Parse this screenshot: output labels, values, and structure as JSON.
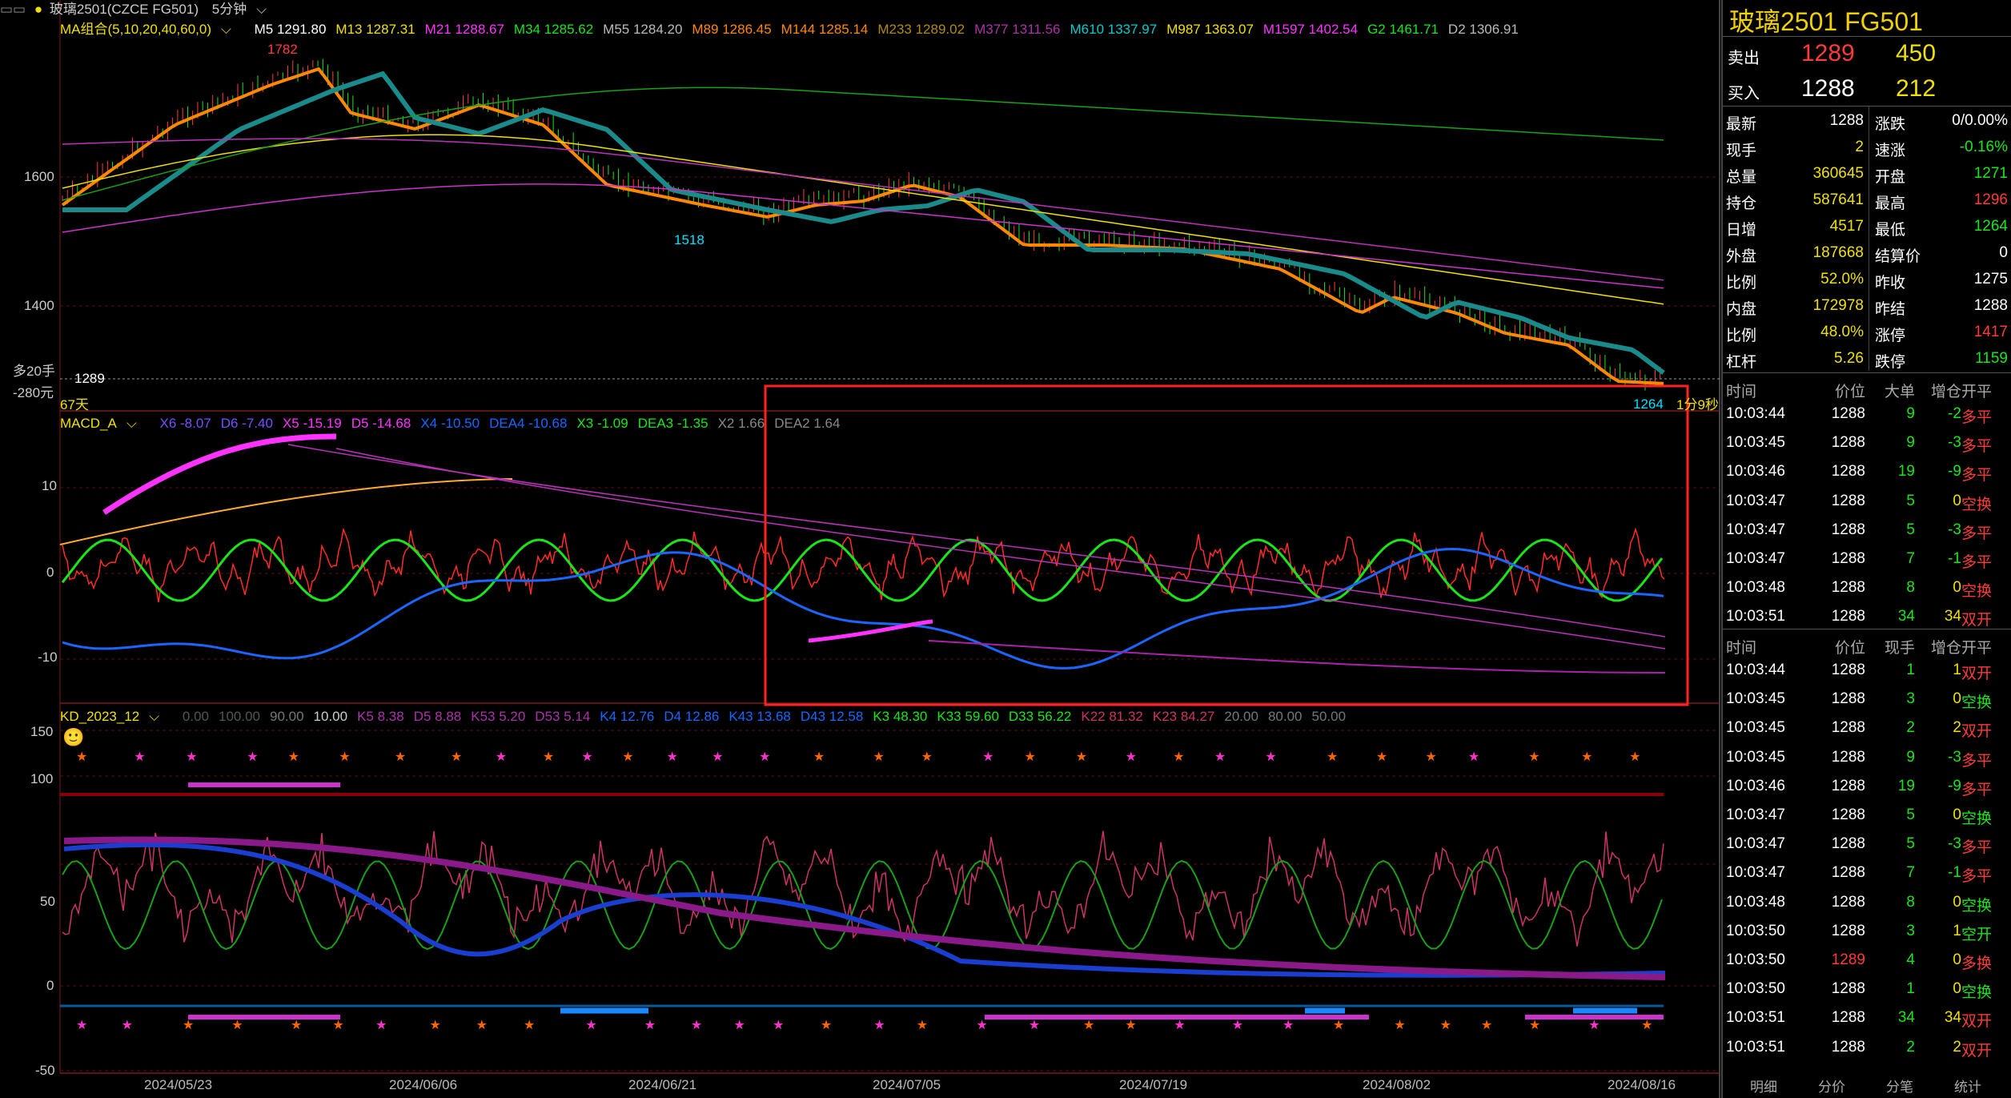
{
  "ma_bar": {
    "name": "MA组合(5,10,20,40,60,0)",
    "items": [
      {
        "t": "M5 1291.80",
        "c": "#ffffff"
      },
      {
        "t": "M13 1287.31",
        "c": "#f0e000"
      },
      {
        "t": "M21 1288.67",
        "c": "#ff33ff"
      },
      {
        "t": "M34 1285.62",
        "c": "#19e619"
      },
      {
        "t": "M55 1284.20",
        "c": "#bbbbbb"
      },
      {
        "t": "M89 1286.45",
        "c": "#ff8800"
      },
      {
        "t": "M144 1285.14",
        "c": "#ff8800"
      },
      {
        "t": "M233 1289.02",
        "c": "#b38b00"
      },
      {
        "t": "M377 1311.56",
        "c": "#aa33aa"
      },
      {
        "t": "M610 1337.97",
        "c": "#00cccc"
      },
      {
        "t": "M987 1363.07",
        "c": "#f0e000"
      },
      {
        "t": "M1597 1402.54",
        "c": "#ff33ff"
      },
      {
        "t": "G2 1461.71",
        "c": "#19e619"
      },
      {
        "t": "D2 1306.91",
        "c": "#bbbbbb"
      }
    ]
  },
  "header": {
    "symbol": "玻璃2501(CZCE FG501)",
    "period": "5分钟"
  },
  "price_axis": {
    "p1600": "1600",
    "p1400": "1400",
    "current": "1289",
    "left_info1": "多20手",
    "left_info2": "-280元",
    "days": "67天",
    "countdown": "1分9秒",
    "high_label": "1782",
    "low_label": "1518",
    "last_low": "1264"
  },
  "macd_bar": {
    "name": "MACD_A",
    "items": [
      {
        "t": "X6 -8.07",
        "c": "#7a4dff"
      },
      {
        "t": "D6 -7.40",
        "c": "#7a4dff"
      },
      {
        "t": "X5 -15.19",
        "c": "#ff33ff"
      },
      {
        "t": "D5 -14.68",
        "c": "#ff33ff"
      },
      {
        "t": "X4 -10.50",
        "c": "#1a66ff"
      },
      {
        "t": "DEA4 -10.68",
        "c": "#1a66ff"
      },
      {
        "t": "X3 -1.09",
        "c": "#19e619"
      },
      {
        "t": "DEA3 -1.35",
        "c": "#19e619"
      },
      {
        "t": "X2 1.66",
        "c": "#888888"
      },
      {
        "t": "DEA2 1.64",
        "c": "#888888"
      }
    ],
    "y10": "10",
    "y0": "0",
    "ym10": "-10"
  },
  "kd_bar": {
    "name": "KD_2023_12",
    "items": [
      {
        "t": "0.00",
        "c": "#555555"
      },
      {
        "t": "100.00",
        "c": "#555555"
      },
      {
        "t": "90.00",
        "c": "#777777"
      },
      {
        "t": "10.00",
        "c": "#cccccc"
      },
      {
        "t": "K5 8.38",
        "c": "#aa33aa"
      },
      {
        "t": "D5 8.88",
        "c": "#aa33aa"
      },
      {
        "t": "K53 5.20",
        "c": "#aa33aa"
      },
      {
        "t": "D53 5.14",
        "c": "#aa33aa"
      },
      {
        "t": "K4 12.76",
        "c": "#1a66ff"
      },
      {
        "t": "D4 12.86",
        "c": "#1a66ff"
      },
      {
        "t": "K43 13.68",
        "c": "#1a66ff"
      },
      {
        "t": "D43 12.58",
        "c": "#1a66ff"
      },
      {
        "t": "K3 48.30",
        "c": "#19e619"
      },
      {
        "t": "K33 59.60",
        "c": "#19e619"
      },
      {
        "t": "D33 56.22",
        "c": "#19e619"
      },
      {
        "t": "K22 81.32",
        "c": "#cc3366"
      },
      {
        "t": "K23 84.27",
        "c": "#cc3366"
      },
      {
        "t": "20.00",
        "c": "#777777"
      },
      {
        "t": "80.00",
        "c": "#777777"
      },
      {
        "t": "50.00",
        "c": "#777777"
      }
    ],
    "y150": "150",
    "y100": "100",
    "y50": "50",
    "y0": "0",
    "ym50": "-50"
  },
  "dates": [
    "2024/05/23",
    "2024/06/06",
    "2024/06/21",
    "2024/07/05",
    "2024/07/19",
    "2024/08/02",
    "2024/08/16"
  ],
  "quote": {
    "title": "玻璃2501  FG501",
    "sell_label": "卖出",
    "sell_price": "1289",
    "sell_vol": "450",
    "buy_label": "买入",
    "buy_price": "1288",
    "buy_vol": "212",
    "stats": [
      {
        "l": "最新",
        "v": "1288",
        "vc": "#ffffff",
        "l2": "涨跌",
        "v2": "0/0.00%",
        "v2c": "#ffffff"
      },
      {
        "l": "现手",
        "v": "2",
        "vc": "#f0e000",
        "l2": "速涨",
        "v2": "-0.16%",
        "v2c": "#19e619"
      },
      {
        "l": "总量",
        "v": "360645",
        "vc": "#f0e000",
        "l2": "开盘",
        "v2": "1271",
        "v2c": "#19e619"
      },
      {
        "l": "持仓",
        "v": "587641",
        "vc": "#f0e000",
        "l2": "最高",
        "v2": "1296",
        "v2c": "#ff3b3b"
      },
      {
        "l": "日增",
        "v": "4517",
        "vc": "#f0e000",
        "l2": "最低",
        "v2": "1264",
        "v2c": "#19e619"
      },
      {
        "l": "外盘",
        "v": "187668",
        "vc": "#f0e000",
        "l2": "结算价",
        "v2": "0",
        "v2c": "#ffffff"
      },
      {
        "l": "比例",
        "v": "52.0%",
        "vc": "#f0e000",
        "l2": "昨收",
        "v2": "1275",
        "v2c": "#ffffff"
      },
      {
        "l": "内盘",
        "v": "172978",
        "vc": "#f0e000",
        "l2": "昨结",
        "v2": "1288",
        "v2c": "#ffffff"
      },
      {
        "l": "比例",
        "v": "48.0%",
        "vc": "#f0e000",
        "l2": "涨停",
        "v2": "1417",
        "v2c": "#ff3b3b"
      },
      {
        "l": "杠杆",
        "v": "5.26",
        "vc": "#f0e000",
        "l2": "跌停",
        "v2": "1159",
        "v2c": "#19e619"
      }
    ]
  },
  "tick_header1": {
    "c1": "时间",
    "c2": "价位",
    "c3": "大单",
    "c4": "增仓",
    "c5": "开平"
  },
  "ticks1": [
    {
      "time": "10:03:44",
      "price": "1288",
      "vol": "9",
      "oi": "-2",
      "type": "多平",
      "pc": "#ffffff",
      "tc": "#ff3b3b"
    },
    {
      "time": "10:03:45",
      "price": "1288",
      "vol": "9",
      "oi": "-3",
      "type": "多平",
      "pc": "#ffffff",
      "tc": "#ff3b3b"
    },
    {
      "time": "10:03:46",
      "price": "1288",
      "vol": "19",
      "oi": "-9",
      "type": "多平",
      "pc": "#ffffff",
      "tc": "#ff3b3b"
    },
    {
      "time": "10:03:47",
      "price": "1288",
      "vol": "5",
      "oi": "0",
      "type": "空换",
      "pc": "#ffffff",
      "tc": "#ff3b3b"
    },
    {
      "time": "10:03:47",
      "price": "1288",
      "vol": "5",
      "oi": "-3",
      "type": "多平",
      "pc": "#ffffff",
      "tc": "#ff3b3b"
    },
    {
      "time": "10:03:47",
      "price": "1288",
      "vol": "7",
      "oi": "-1",
      "type": "多平",
      "pc": "#ffffff",
      "tc": "#ff3b3b"
    },
    {
      "time": "10:03:48",
      "price": "1288",
      "vol": "8",
      "oi": "0",
      "type": "空换",
      "pc": "#ffffff",
      "tc": "#ff3b3b"
    },
    {
      "time": "10:03:51",
      "price": "1288",
      "vol": "34",
      "oi": "34",
      "type": "双开",
      "pc": "#ffffff",
      "tc": "#ff3b3b"
    }
  ],
  "tick_header2": {
    "c1": "时间",
    "c2": "价位",
    "c3": "现手",
    "c4": "增仓",
    "c5": "开平"
  },
  "ticks2": [
    {
      "time": "10:03:44",
      "price": "1288",
      "vol": "1",
      "oi": "1",
      "type": "双开",
      "pc": "#ffffff",
      "tc": "#ff3b3b"
    },
    {
      "time": "10:03:45",
      "price": "1288",
      "vol": "3",
      "oi": "0",
      "type": "空换",
      "pc": "#ffffff",
      "tc": "#19e619"
    },
    {
      "time": "10:03:45",
      "price": "1288",
      "vol": "2",
      "oi": "2",
      "type": "双开",
      "pc": "#ffffff",
      "tc": "#ff3b3b"
    },
    {
      "time": "10:03:45",
      "price": "1288",
      "vol": "9",
      "oi": "-3",
      "type": "多平",
      "pc": "#ffffff",
      "tc": "#ff3b3b"
    },
    {
      "time": "10:03:46",
      "price": "1288",
      "vol": "19",
      "oi": "-9",
      "type": "多平",
      "pc": "#ffffff",
      "tc": "#ff3b3b"
    },
    {
      "time": "10:03:47",
      "price": "1288",
      "vol": "5",
      "oi": "0",
      "type": "空换",
      "pc": "#ffffff",
      "tc": "#19e619"
    },
    {
      "time": "10:03:47",
      "price": "1288",
      "vol": "5",
      "oi": "-3",
      "type": "多平",
      "pc": "#ffffff",
      "tc": "#ff3b3b"
    },
    {
      "time": "10:03:47",
      "price": "1288",
      "vol": "7",
      "oi": "-1",
      "type": "多平",
      "pc": "#ffffff",
      "tc": "#ff3b3b"
    },
    {
      "time": "10:03:48",
      "price": "1288",
      "vol": "8",
      "oi": "0",
      "type": "空换",
      "pc": "#ffffff",
      "tc": "#19e619"
    },
    {
      "time": "10:03:50",
      "price": "1288",
      "vol": "3",
      "oi": "1",
      "type": "空开",
      "pc": "#ffffff",
      "tc": "#19e619"
    },
    {
      "time": "10:03:50",
      "price": "1289",
      "vol": "4",
      "oi": "0",
      "type": "多换",
      "pc": "#ff3b3b",
      "tc": "#ff3b3b"
    },
    {
      "time": "10:03:50",
      "price": "1288",
      "vol": "1",
      "oi": "0",
      "type": "空换",
      "pc": "#ffffff",
      "tc": "#19e619"
    },
    {
      "time": "10:03:51",
      "price": "1288",
      "vol": "34",
      "oi": "34",
      "type": "双开",
      "pc": "#ffffff",
      "tc": "#ff3b3b"
    },
    {
      "time": "10:03:51",
      "price": "1288",
      "vol": "2",
      "oi": "2",
      "type": "双开",
      "pc": "#ffffff",
      "tc": "#ff3b3b"
    }
  ],
  "tabs": [
    "明细",
    "分价",
    "分笔",
    "统计"
  ],
  "colors": {
    "candle_up": "#ff3b3b",
    "candle_down": "#19e619",
    "ma_orange": "#ff8800",
    "ma_teal": "#1a8a8a",
    "highlight_box": "#ff2222"
  }
}
